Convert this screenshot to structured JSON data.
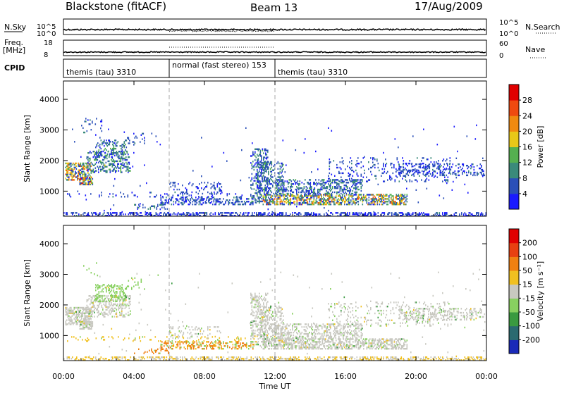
{
  "header": {
    "title": "Blackstone (fitACF)",
    "beam": "Beam 13",
    "date": "17/Aug/2009"
  },
  "strip_labels": {
    "nsky": "N.Sky",
    "nsearch": "N.Search",
    "freq": "Freq.",
    "freq_unit": "[MHz]",
    "nave": "Nave",
    "cpid": "CPID"
  },
  "strip_ticks": {
    "nsky": [
      "10^5",
      "10^0"
    ],
    "nsearch": [
      "10^5",
      "10^0"
    ],
    "freq": [
      "18",
      "8"
    ],
    "nave": [
      "60",
      "0"
    ]
  },
  "cpid_segments": [
    {
      "label": "themis (tau) 3310",
      "start": 0,
      "end": 6
    },
    {
      "label": "normal (fast stereo) 153",
      "start": 6,
      "end": 12
    },
    {
      "label": "themis (tau) 3310",
      "start": 12,
      "end": 24
    }
  ],
  "chart_data": [
    {
      "type": "heatmap",
      "name": "power",
      "ylabel": "Slant Range [km]",
      "xlabel": "",
      "xlim": [
        0,
        24
      ],
      "ylim": [
        180,
        4600
      ],
      "x_ticks": [
        "00:00",
        "04:00",
        "08:00",
        "12:00",
        "16:00",
        "20:00",
        "00:00"
      ],
      "y_ticks": [
        1000,
        2000,
        3000,
        4000
      ],
      "colorbar": {
        "label": "Power [dB]",
        "ticks": [
          "4",
          "8",
          "12",
          "16",
          "20",
          "24",
          "28"
        ],
        "colors": [
          "#1a1aff",
          "#2a4fb8",
          "#3a8a7a",
          "#55b050",
          "#e8c818",
          "#f08a10",
          "#ef4a10",
          "#e00000"
        ]
      }
    },
    {
      "type": "heatmap",
      "name": "velocity",
      "ylabel": "Slant Range [km]",
      "xlabel": "Time UT",
      "xlim": [
        0,
        24
      ],
      "ylim": [
        180,
        4600
      ],
      "x_ticks": [
        "00:00",
        "04:00",
        "08:00",
        "12:00",
        "16:00",
        "20:00",
        "00:00"
      ],
      "y_ticks": [
        1000,
        2000,
        3000,
        4000
      ],
      "colorbar": {
        "label": "Velocity [m s⁻¹]",
        "ticks": [
          "200",
          "100",
          "50",
          "15",
          "-15",
          "-50",
          "-100",
          "-200"
        ],
        "colors": [
          "#1a2ab8",
          "#2a6a70",
          "#3a9a40",
          "#88d060",
          "#c8c8c0",
          "#f0c020",
          "#f08010",
          "#e84010",
          "#e00000"
        ]
      }
    }
  ]
}
